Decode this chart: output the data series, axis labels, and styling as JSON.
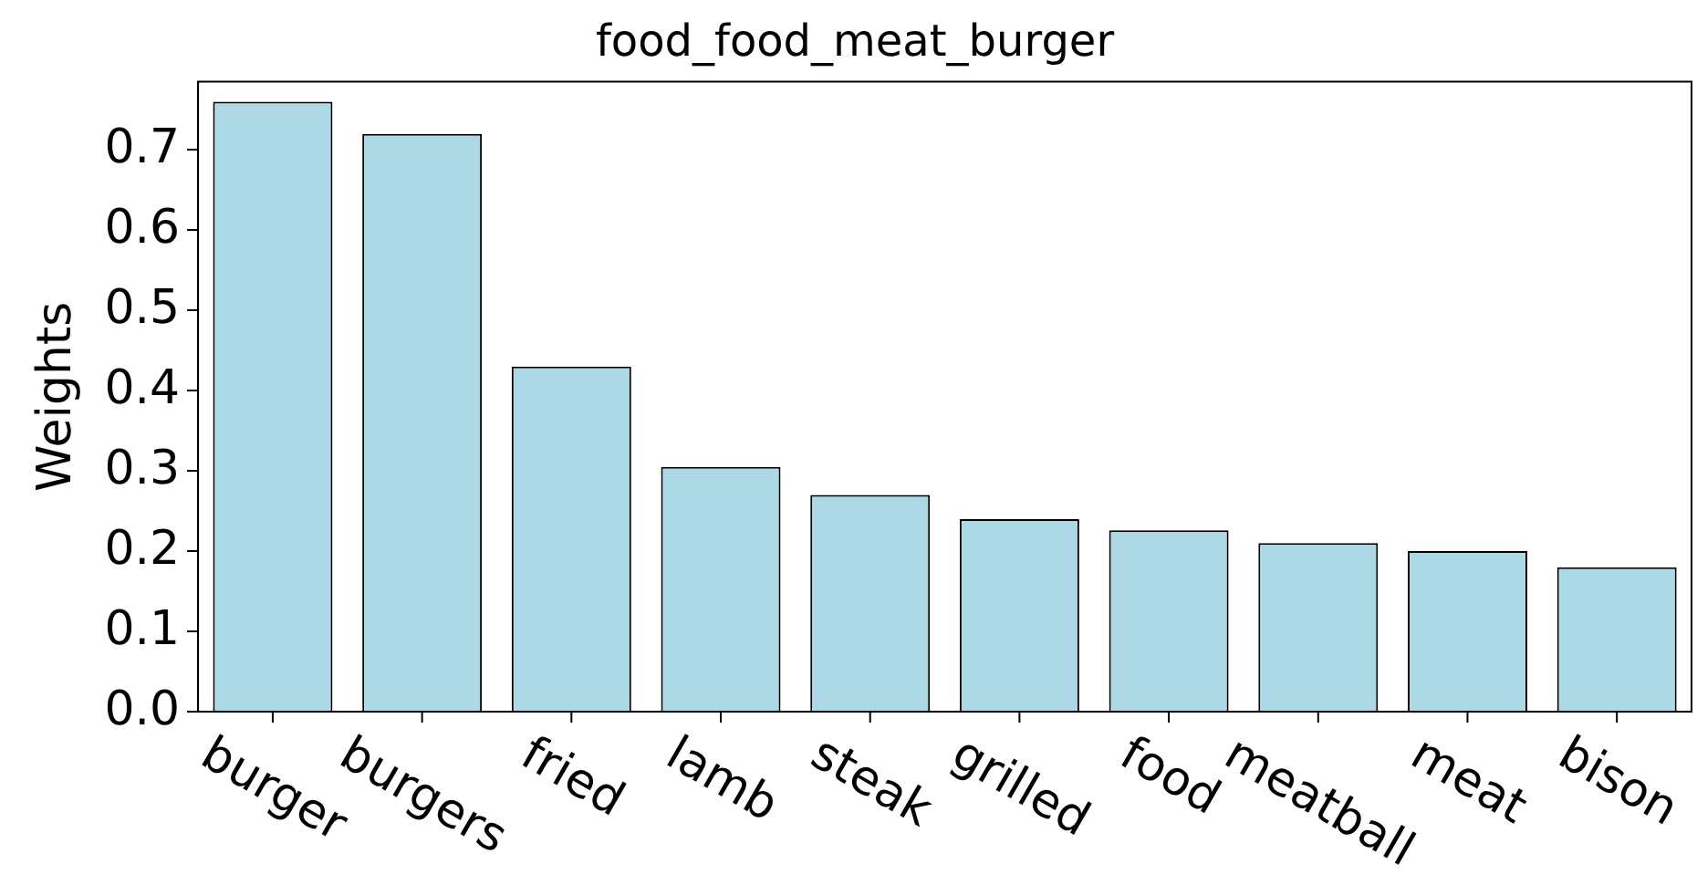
{
  "chart_data": {
    "type": "bar",
    "title": "food_food_meat_burger",
    "ylabel": "Weights",
    "categories": [
      "burger",
      "burgers",
      "fried",
      "lamb",
      "steak",
      "grilled",
      "food",
      "meatball",
      "meat",
      "bison"
    ],
    "values": [
      0.76,
      0.72,
      0.43,
      0.305,
      0.27,
      0.24,
      0.226,
      0.21,
      0.2,
      0.18
    ],
    "color": "#add8e6",
    "ylim": [
      0,
      0.785
    ],
    "yticks": [
      {
        "value": 0,
        "label": "0.0"
      },
      {
        "value": 0.1,
        "label": "0.1"
      },
      {
        "value": 0.2,
        "label": "0.2"
      },
      {
        "value": 0.3,
        "label": "0.3"
      },
      {
        "value": 0.4,
        "label": "0.4"
      },
      {
        "value": 0.5,
        "label": "0.5"
      },
      {
        "value": 0.6,
        "label": "0.6"
      },
      {
        "value": 0.7,
        "label": "0.7"
      }
    ],
    "grid": false,
    "legend": false
  }
}
